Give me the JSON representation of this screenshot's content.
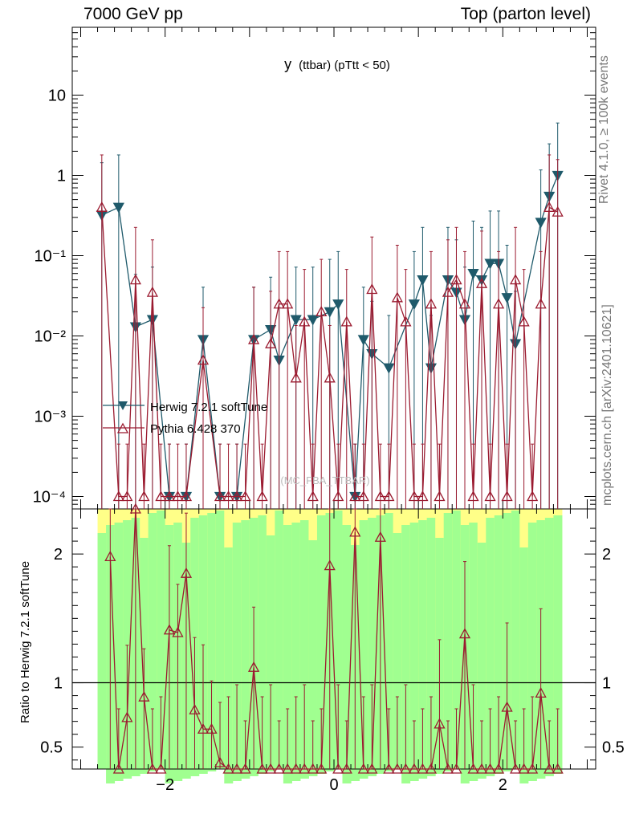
{
  "header": {
    "left": "7000 GeV pp",
    "right": "Top (parton level)"
  },
  "side_labels": {
    "upper": "Rivet 4.1.0, ≥ 100k events",
    "lower": "mcplots.cern.ch [arXiv:2401.10621]"
  },
  "colors": {
    "herwig": "#1f5a6b",
    "pythia": "#9b1b30",
    "band_inner": "#a0ff90",
    "band_outer": "#ffff88"
  },
  "chart_data": {
    "type": "line",
    "title": "y (ttbar) (pTtt < 50)",
    "title_main": "y",
    "title_sub": "(ttbar) (pTtt < 50)",
    "watermark": "(MC_FBA_TTBAR)",
    "xlabel": "",
    "xlim": [
      -3.1,
      3.1
    ],
    "x_ticks": [
      -2,
      0,
      2
    ],
    "x_tick_labels": [
      "−2",
      "0",
      "2"
    ],
    "main": {
      "yscale": "log",
      "ylim": [
        7e-05,
        70
      ],
      "y_ticks": [
        0.0001,
        0.001,
        0.01,
        0.1,
        1,
        10
      ],
      "y_tick_labels": [
        "10⁻⁴",
        "10⁻³",
        "10⁻²",
        "10⁻¹",
        "1",
        "10"
      ],
      "legend": [
        "Herwig 7.2.1 softTune",
        "Pythia 6.428 370"
      ]
    },
    "ratio": {
      "ylabel": "Ratio to Herwig 7.2.1 softTune",
      "ylim": [
        0.33,
        2.35
      ],
      "y_ticks": [
        0.5,
        1,
        2
      ],
      "y_tick_labels": [
        "0.5",
        "1",
        "2"
      ]
    },
    "series": [
      {
        "name": "Herwig 7.2.1 softTune",
        "x": [
          -2.75,
          -2.55,
          -2.35,
          -2.15,
          -1.95,
          -1.75,
          -1.55,
          -1.35,
          -1.15,
          -0.95,
          -0.75,
          -0.65,
          -0.45,
          -0.25,
          -0.05,
          0.05,
          0.25,
          0.35,
          0.45,
          0.65,
          0.95,
          1.05,
          1.15,
          1.35,
          1.45,
          1.55,
          1.65,
          1.75,
          1.85,
          1.95,
          2.05,
          2.15,
          2.45,
          2.55,
          2.65
        ],
        "values": [
          0.32,
          0.4,
          0.013,
          0.016,
          0.0001,
          0.0001,
          0.009,
          0.0001,
          0.0001,
          0.009,
          0.012,
          0.005,
          0.016,
          0.016,
          0.02,
          0.025,
          0.0001,
          0.009,
          0.006,
          0.004,
          0.025,
          0.05,
          0.004,
          0.05,
          0.035,
          0.016,
          0.06,
          0.05,
          0.08,
          0.08,
          0.03,
          0.008,
          0.26,
          0.55,
          1.0
        ]
      },
      {
        "name": "Pythia 6.428 370",
        "x": [
          -2.75,
          -2.55,
          -2.45,
          -2.35,
          -2.25,
          -2.15,
          -2.05,
          -1.95,
          -1.85,
          -1.75,
          -1.55,
          -1.35,
          -1.25,
          -1.15,
          -1.05,
          -0.95,
          -0.85,
          -0.75,
          -0.65,
          -0.55,
          -0.45,
          -0.35,
          -0.25,
          -0.15,
          -0.05,
          0.05,
          0.15,
          0.25,
          0.35,
          0.45,
          0.55,
          0.65,
          0.75,
          0.85,
          0.95,
          1.05,
          1.15,
          1.25,
          1.35,
          1.45,
          1.55,
          1.65,
          1.75,
          1.85,
          1.95,
          2.05,
          2.15,
          2.25,
          2.35,
          2.45,
          2.55,
          2.65
        ],
        "values": [
          0.4,
          0.0001,
          0.0001,
          0.05,
          0.0001,
          0.035,
          0.0001,
          0.0001,
          0.0001,
          0.0001,
          0.005,
          0.0001,
          0.0001,
          0.0001,
          0.0001,
          0.009,
          0.0001,
          0.008,
          0.025,
          0.025,
          0.003,
          0.015,
          0.0001,
          0.02,
          0.003,
          0.0001,
          0.015,
          0.0001,
          0.0001,
          0.038,
          0.0001,
          0.0001,
          0.03,
          0.015,
          0.0001,
          0.0001,
          0.025,
          0.0001,
          0.035,
          0.05,
          0.025,
          0.0001,
          0.045,
          0.0001,
          0.025,
          0.0001,
          0.05,
          0.015,
          0.0001,
          0.025,
          0.4,
          0.35
        ]
      }
    ],
    "ratio_series": {
      "name": "Pythia 6.428 370 / Herwig 7.2.1 softTune",
      "x": [
        -2.65,
        -2.55,
        -2.45,
        -2.35,
        -2.25,
        -2.15,
        -2.05,
        -1.95,
        -1.85,
        -1.75,
        -1.65,
        -1.55,
        -1.45,
        -1.35,
        -1.25,
        -1.15,
        -1.05,
        -0.95,
        -0.85,
        -0.75,
        -0.65,
        -0.55,
        -0.45,
        -0.35,
        -0.25,
        -0.15,
        -0.05,
        0.05,
        0.15,
        0.25,
        0.35,
        0.45,
        0.55,
        0.65,
        0.75,
        0.85,
        0.95,
        1.05,
        1.15,
        1.25,
        1.35,
        1.45,
        1.55,
        1.65,
        1.75,
        1.85,
        1.95,
        2.05,
        2.15,
        2.25,
        2.35,
        2.45,
        2.55,
        2.65
      ],
      "values": [
        1.98,
        0.33,
        0.73,
        2.35,
        0.89,
        0.33,
        0.33,
        1.41,
        1.39,
        1.85,
        0.79,
        0.64,
        0.64,
        0.38,
        0.33,
        0.33,
        0.33,
        1.12,
        0.33,
        0.33,
        0.33,
        0.33,
        0.33,
        0.33,
        0.33,
        0.33,
        1.91,
        0.33,
        0.33,
        2.17,
        0.33,
        0.33,
        2.13,
        0.33,
        0.33,
        0.33,
        0.33,
        0.33,
        0.33,
        0.68,
        0.33,
        0.33,
        1.38,
        0.33,
        0.33,
        0.33,
        0.33,
        0.81,
        0.33,
        0.33,
        0.33,
        0.92,
        0.33,
        0.33
      ]
    },
    "band_x_range": [
      -2.8,
      2.7
    ]
  }
}
